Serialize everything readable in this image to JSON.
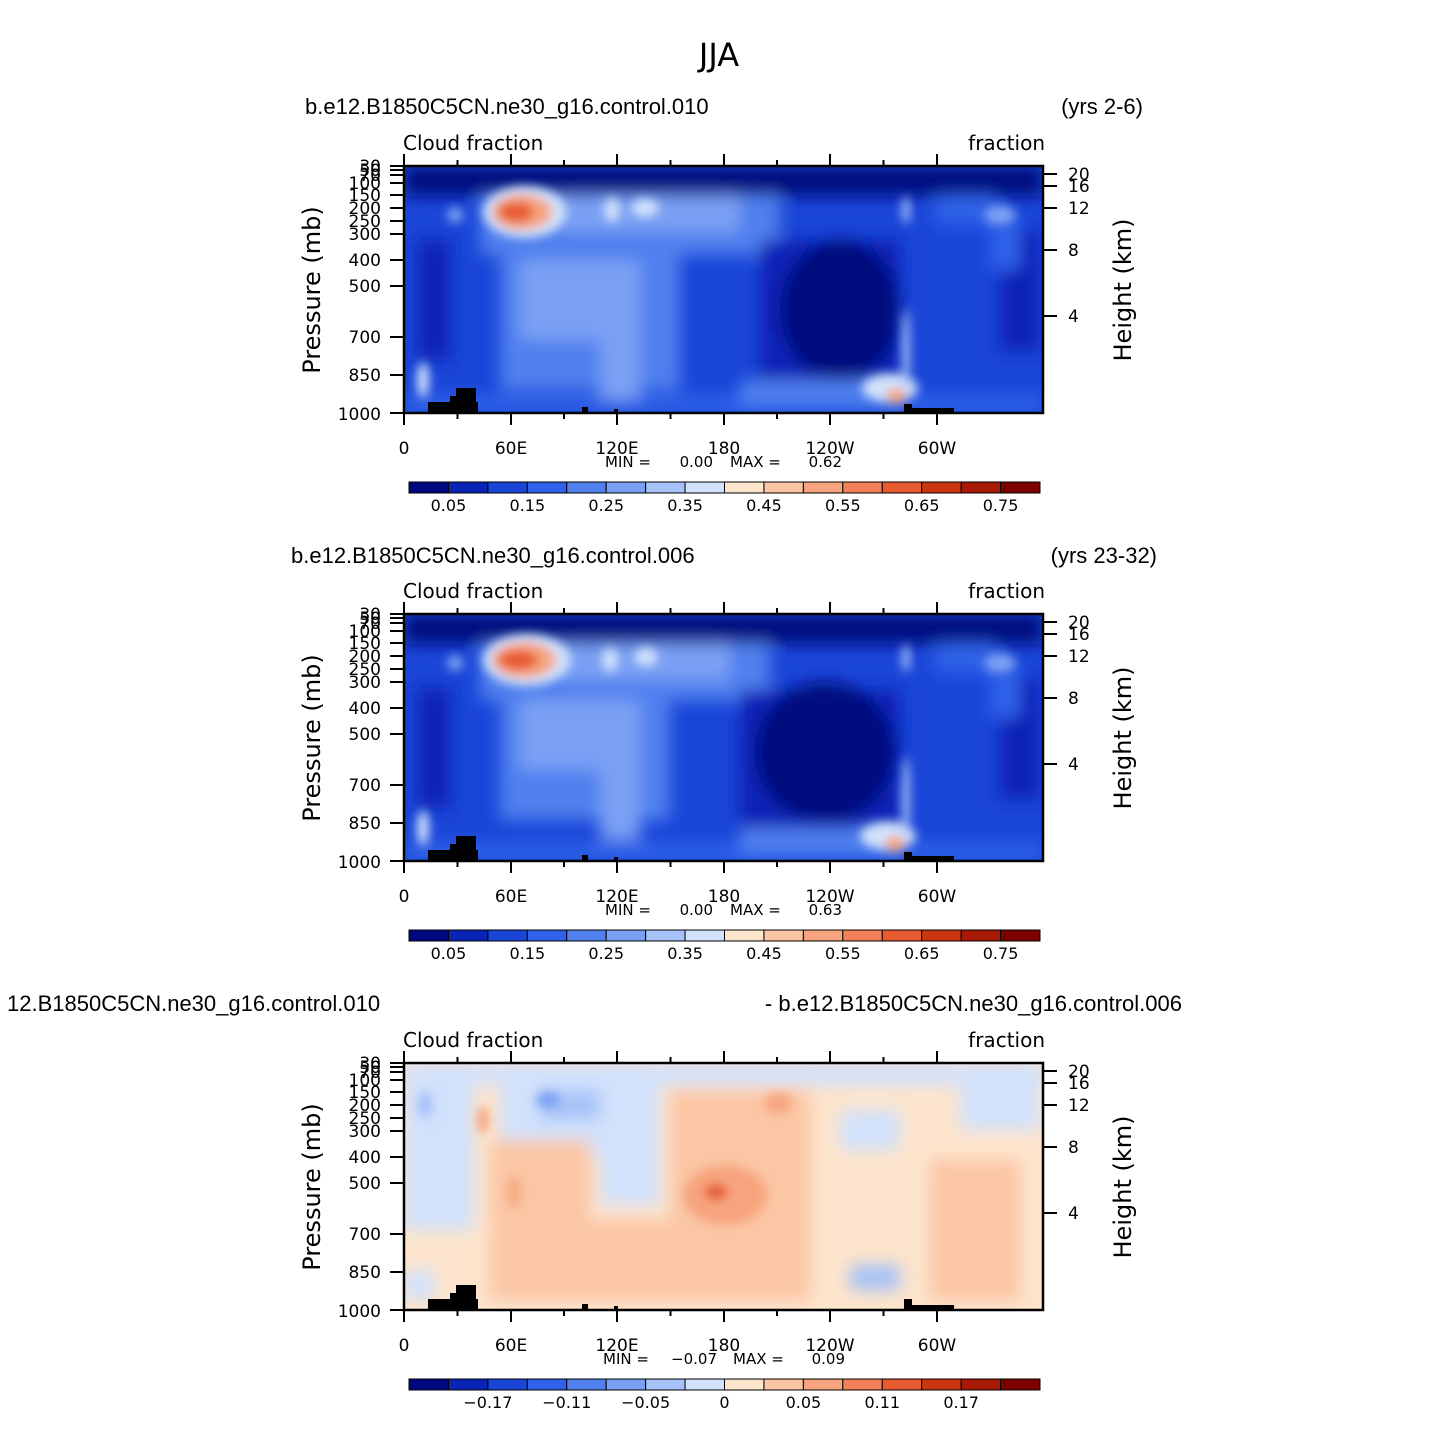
{
  "figure": {
    "title": "JJA"
  },
  "chart_data": [
    {
      "type": "heatmap",
      "title_left": "b.e12.B1850C5CN.ne30_g16.control.010",
      "title_right": "(yrs 2-6)",
      "subtitle_left": "Cloud fraction",
      "subtitle_right": "fraction",
      "ylabel": "Pressure (mb)",
      "ylabel_right": "Height (km)",
      "x_ticks": [
        "0",
        "60E",
        "120E",
        "180",
        "120W",
        "60W"
      ],
      "y_ticks": [
        "30",
        "50",
        "70",
        "100",
        "150",
        "200",
        "250",
        "300",
        "400",
        "500",
        "700",
        "850",
        "1000"
      ],
      "y2_ticks": [
        "20",
        "16",
        "12",
        "8",
        "4"
      ],
      "xlim": [
        0,
        360
      ],
      "ylim": [
        1000,
        30
      ],
      "stats": {
        "min_label": "MIN =",
        "min": "0.00",
        "max_label": "MAX =",
        "max": "0.62"
      },
      "colorbar_labels": [
        "0.05",
        "0.15",
        "0.25",
        "0.35",
        "0.45",
        "0.55",
        "0.65",
        "0.75"
      ]
    },
    {
      "type": "heatmap",
      "title_left": "b.e12.B1850C5CN.ne30_g16.control.006",
      "title_right": "(yrs 23-32)",
      "subtitle_left": "Cloud fraction",
      "subtitle_right": "fraction",
      "ylabel": "Pressure (mb)",
      "ylabel_right": "Height (km)",
      "x_ticks": [
        "0",
        "60E",
        "120E",
        "180",
        "120W",
        "60W"
      ],
      "y_ticks": [
        "30",
        "50",
        "70",
        "100",
        "150",
        "200",
        "250",
        "300",
        "400",
        "500",
        "700",
        "850",
        "1000"
      ],
      "y2_ticks": [
        "20",
        "16",
        "12",
        "8",
        "4"
      ],
      "xlim": [
        0,
        360
      ],
      "ylim": [
        1000,
        30
      ],
      "stats": {
        "min_label": "MIN =",
        "min": "0.00",
        "max_label": "MAX =",
        "max": "0.63"
      },
      "colorbar_labels": [
        "0.05",
        "0.15",
        "0.25",
        "0.35",
        "0.45",
        "0.55",
        "0.65",
        "0.75"
      ]
    },
    {
      "type": "heatmap",
      "title_left": "12.B1850C5CN.ne30_g16.control.010",
      "title_right": "- b.e12.B1850C5CN.ne30_g16.control.006",
      "subtitle_left": "Cloud fraction",
      "subtitle_right": "fraction",
      "ylabel": "Pressure (mb)",
      "ylabel_right": "Height (km)",
      "x_ticks": [
        "0",
        "60E",
        "120E",
        "180",
        "120W",
        "60W"
      ],
      "y_ticks": [
        "30",
        "50",
        "70",
        "100",
        "150",
        "200",
        "250",
        "300",
        "400",
        "500",
        "700",
        "850",
        "1000"
      ],
      "y2_ticks": [
        "20",
        "16",
        "12",
        "8",
        "4"
      ],
      "xlim": [
        0,
        360
      ],
      "ylim": [
        1000,
        30
      ],
      "stats": {
        "min_label": "MIN =",
        "min": "−0.07",
        "max_label": "MAX =",
        "max": "0.09"
      },
      "colorbar_labels": [
        "−0.17",
        "−0.11",
        "−0.05",
        "0",
        "0.05",
        "0.11",
        "0.17"
      ]
    }
  ],
  "colors": {
    "cloud_scale": [
      "#00087e",
      "#0a24b6",
      "#1a46d8",
      "#2e62e8",
      "#4f80ee",
      "#7aa0f4",
      "#a6c2f8",
      "#d2e2fc",
      "#fde4cc",
      "#fbc6a4",
      "#f7a47e",
      "#f28058",
      "#e85a30",
      "#cc3512",
      "#a81a06",
      "#7c0202"
    ],
    "diff_scale": [
      "#00087e",
      "#0a24b6",
      "#1a46d8",
      "#2e62e8",
      "#4f80ee",
      "#7aa0f4",
      "#a6c2f8",
      "#d2e2fc",
      "#fde4cc",
      "#fbc6a4",
      "#f7a47e",
      "#f28058",
      "#e85a30",
      "#cc3512",
      "#a81a06",
      "#7c0202"
    ]
  }
}
